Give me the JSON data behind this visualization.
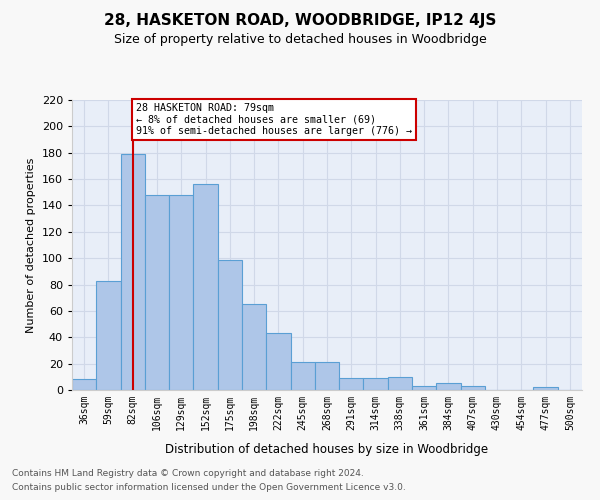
{
  "title1": "28, HASKETON ROAD, WOODBRIDGE, IP12 4JS",
  "title2": "Size of property relative to detached houses in Woodbridge",
  "xlabel": "Distribution of detached houses by size in Woodbridge",
  "ylabel": "Number of detached properties",
  "categories": [
    "36sqm",
    "59sqm",
    "82sqm",
    "106sqm",
    "129sqm",
    "152sqm",
    "175sqm",
    "198sqm",
    "222sqm",
    "245sqm",
    "268sqm",
    "291sqm",
    "314sqm",
    "338sqm",
    "361sqm",
    "384sqm",
    "407sqm",
    "430sqm",
    "454sqm",
    "477sqm",
    "500sqm"
  ],
  "values": [
    8,
    83,
    179,
    148,
    148,
    156,
    99,
    65,
    43,
    21,
    21,
    9,
    9,
    10,
    3,
    5,
    3,
    0,
    0,
    2,
    0
  ],
  "bar_color": "#aec6e8",
  "bar_edge_color": "#5a9fd4",
  "vline_x": 2,
  "vline_color": "#cc0000",
  "annotation_text": "28 HASKETON ROAD: 79sqm\n← 8% of detached houses are smaller (69)\n91% of semi-detached houses are larger (776) →",
  "annotation_box_color": "#ffffff",
  "annotation_box_edge": "#cc0000",
  "ylim": [
    0,
    220
  ],
  "yticks": [
    0,
    20,
    40,
    60,
    80,
    100,
    120,
    140,
    160,
    180,
    200,
    220
  ],
  "grid_color": "#d0d8e8",
  "bg_color": "#e8eef8",
  "fig_bg_color": "#f8f8f8",
  "footer1": "Contains HM Land Registry data © Crown copyright and database right 2024.",
  "footer2": "Contains public sector information licensed under the Open Government Licence v3.0."
}
